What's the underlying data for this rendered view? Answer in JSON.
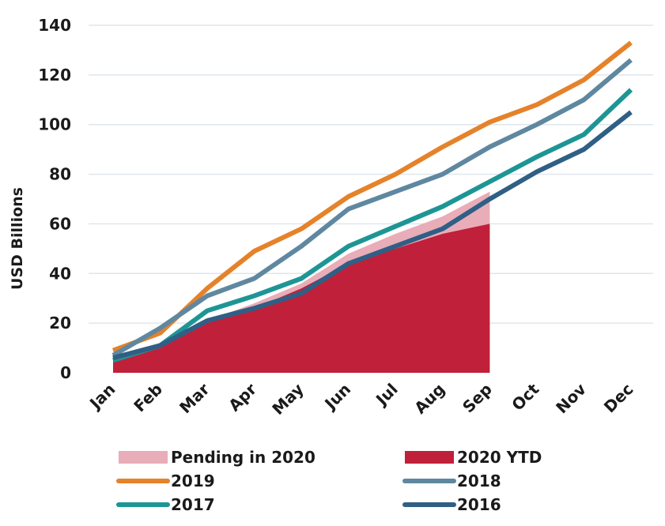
{
  "chart_data": {
    "type": "line",
    "ylabel": "USD Billions",
    "xlabel": "",
    "ylim": [
      0,
      140
    ],
    "yticks": [
      0,
      20,
      40,
      60,
      80,
      100,
      120,
      140
    ],
    "grid": true,
    "legend_position": "bottom",
    "categories": [
      "Jan",
      "Feb",
      "Mar",
      "Apr",
      "May",
      "Jun",
      "Jul",
      "Aug",
      "Sep",
      "Oct",
      "Nov",
      "Dec"
    ],
    "areas": [
      {
        "name": "Pending in 2020",
        "color": "#e8adb8",
        "values": [
          6,
          12,
          21,
          28,
          36,
          48,
          56,
          63,
          73
        ]
      },
      {
        "name": "2020 YTD",
        "color": "#c0203a",
        "values": [
          5,
          10,
          20,
          26,
          34,
          44,
          50,
          56,
          60
        ]
      }
    ],
    "series": [
      {
        "name": "2019",
        "color": "#e5822a",
        "values": [
          9,
          16,
          34,
          49,
          58,
          71,
          80,
          91,
          101,
          108,
          118,
          133
        ]
      },
      {
        "name": "2018",
        "color": "#5f88a0",
        "values": [
          7,
          18,
          31,
          38,
          51,
          66,
          73,
          80,
          91,
          100,
          110,
          126
        ]
      },
      {
        "name": "2017",
        "color": "#1e9595",
        "values": [
          5,
          11,
          25,
          31,
          38,
          51,
          59,
          67,
          77,
          87,
          96,
          114
        ]
      },
      {
        "name": "2016",
        "color": "#2f5f85",
        "values": [
          6,
          11,
          21,
          26,
          32,
          44,
          51,
          58,
          70,
          81,
          90,
          105
        ]
      }
    ],
    "legend": [
      {
        "name": "Pending in 2020",
        "color": "#e8adb8",
        "kind": "area"
      },
      {
        "name": "2020 YTD",
        "color": "#c0203a",
        "kind": "area"
      },
      {
        "name": "2019",
        "color": "#e5822a",
        "kind": "line"
      },
      {
        "name": "2018",
        "color": "#5f88a0",
        "kind": "line"
      },
      {
        "name": "2017",
        "color": "#1e9595",
        "kind": "line"
      },
      {
        "name": "2016",
        "color": "#2f5f85",
        "kind": "line"
      }
    ]
  }
}
